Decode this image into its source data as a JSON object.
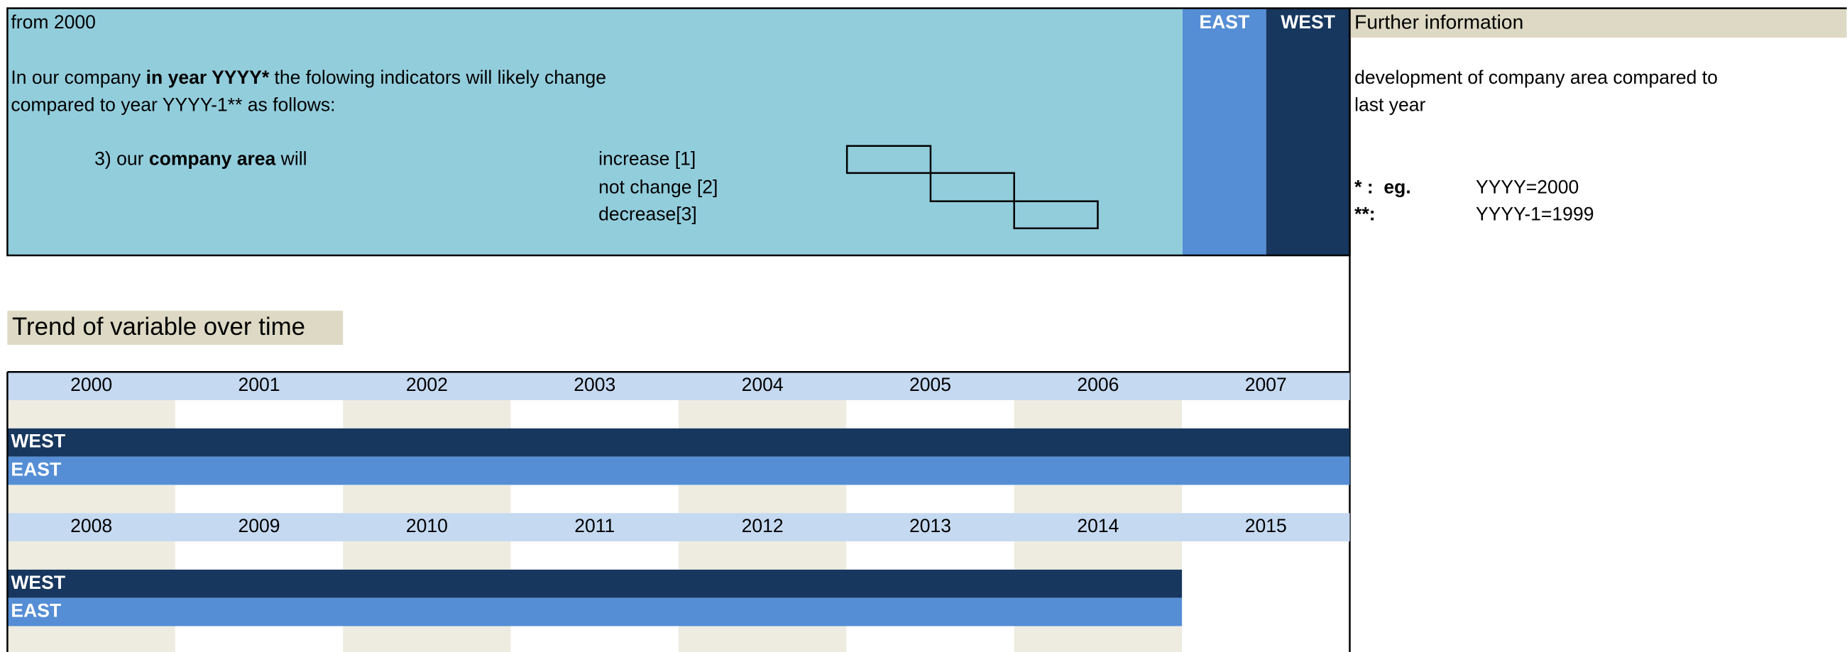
{
  "question": {
    "from": "from 2000",
    "intro_prefix": "In our company ",
    "intro_bold": "in year YYYY*",
    "intro_rest": " the folowing indicators will likely change",
    "intro_line2": "compared to year YYYY-1** as follows:",
    "item_prefix": "3) our ",
    "item_bold": "company area",
    "item_suffix": " will",
    "options": [
      "increase [1]",
      "not change [2]",
      "decrease[3]"
    ],
    "columns": [
      "EAST",
      "WEST"
    ]
  },
  "info": {
    "title": "Further information",
    "text_line1": "development of company area compared to",
    "text_line2": "last year",
    "notes": [
      {
        "key": "* :  eg.",
        "value": "YYYY=2000"
      },
      {
        "key": "**:",
        "value": "YYYY-1=1999"
      }
    ]
  },
  "trend": {
    "title": "Trend of variable over time",
    "years": [
      [
        2000,
        2001,
        2002,
        2003,
        2004,
        2005,
        2006,
        2007
      ],
      [
        2008,
        2009,
        2010,
        2011,
        2012,
        2013,
        2014,
        2015
      ]
    ],
    "rows": [
      "WEST",
      "EAST"
    ]
  }
}
